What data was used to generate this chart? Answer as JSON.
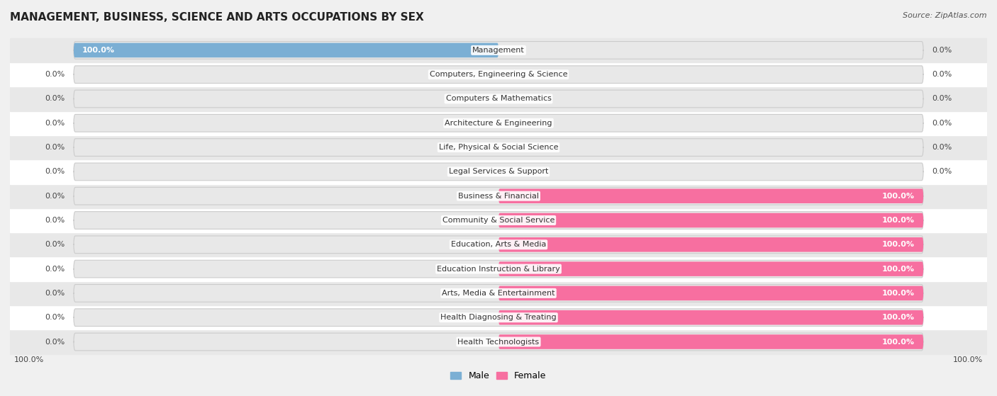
{
  "title": "MANAGEMENT, BUSINESS, SCIENCE AND ARTS OCCUPATIONS BY SEX",
  "source": "Source: ZipAtlas.com",
  "categories": [
    "Management",
    "Computers, Engineering & Science",
    "Computers & Mathematics",
    "Architecture & Engineering",
    "Life, Physical & Social Science",
    "Legal Services & Support",
    "Business & Financial",
    "Community & Social Service",
    "Education, Arts & Media",
    "Education Instruction & Library",
    "Arts, Media & Entertainment",
    "Health Diagnosing & Treating",
    "Health Technologists"
  ],
  "male_values": [
    100.0,
    0.0,
    0.0,
    0.0,
    0.0,
    0.0,
    0.0,
    0.0,
    0.0,
    0.0,
    0.0,
    0.0,
    0.0
  ],
  "female_values": [
    0.0,
    0.0,
    0.0,
    0.0,
    0.0,
    0.0,
    100.0,
    100.0,
    100.0,
    100.0,
    100.0,
    100.0,
    100.0
  ],
  "male_color": "#7bafd4",
  "female_color": "#f76fa0",
  "male_label": "Male",
  "female_label": "Female",
  "bg_color": "#f0f0f0",
  "title_fontsize": 11,
  "source_fontsize": 8,
  "label_fontsize": 8,
  "value_fontsize": 8
}
